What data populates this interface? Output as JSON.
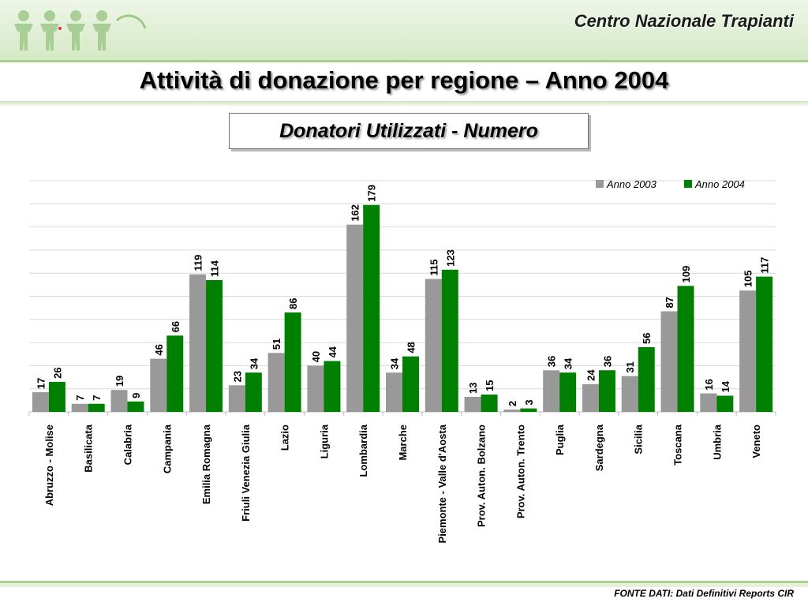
{
  "header": {
    "org_name": "Centro Nazionale Trapianti",
    "logo_icon": "people-figures-logo-icon"
  },
  "page": {
    "title": "Attività  di donazione per regione – Anno 2004",
    "subtitle": "Donatori Utilizzati - Numero"
  },
  "footer": {
    "source": "FONTE DATI: Dati Definitivi Reports CIR"
  },
  "colors": {
    "series_2003": "#999999",
    "series_2004": "#008000",
    "header_green": "#a9d08e"
  },
  "chart_data": {
    "type": "bar",
    "title": "Donatori Utilizzati - Numero",
    "xlabel": "",
    "ylabel": "",
    "ylim": [
      0,
      200
    ],
    "grid": true,
    "legend_position": "top-right",
    "categories": [
      "Abruzzo - Molise",
      "Basilicata",
      "Calabria",
      "Campania",
      "Emilia Romagna",
      "Friuli Venezia Giulia",
      "Lazio",
      "Liguria",
      "Lombardia",
      "Marche",
      "Piemonte - Valle d'Aosta",
      "Prov. Auton. Bolzano",
      "Prov. Auton. Trento",
      "Puglia",
      "Sardegna",
      "Sicilia",
      "Toscana",
      "Umbria",
      "Veneto"
    ],
    "series": [
      {
        "name": "Anno 2003",
        "values": [
          17,
          7,
          19,
          46,
          119,
          23,
          51,
          40,
          162,
          34,
          115,
          13,
          2,
          36,
          24,
          31,
          87,
          16,
          105
        ]
      },
      {
        "name": "Anno 2004",
        "values": [
          26,
          7,
          9,
          66,
          114,
          34,
          86,
          44,
          179,
          48,
          123,
          15,
          3,
          34,
          36,
          56,
          109,
          14,
          117
        ]
      }
    ]
  }
}
